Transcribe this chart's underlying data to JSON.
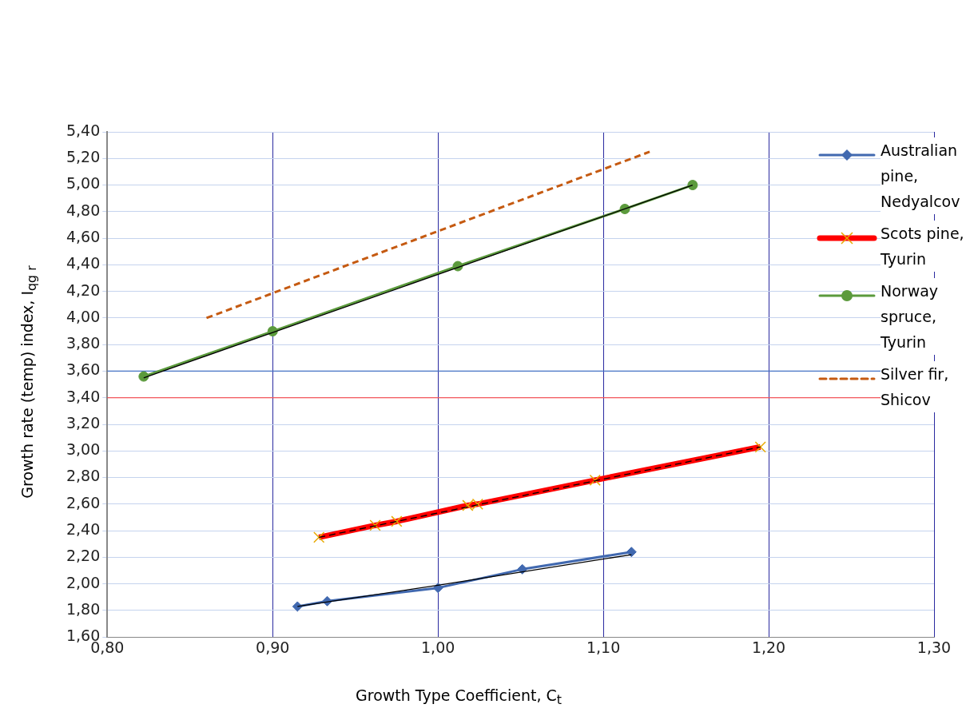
{
  "chart_data": {
    "type": "line",
    "xlabel": "Growth Type Coefficient, C$_{t}$",
    "ylabel": "Growth rate (temp) index, I$_{qg r}$",
    "xlim": [
      0.8,
      1.3
    ],
    "xticks": [
      {
        "value": 0.8,
        "label": "0,80"
      },
      {
        "value": 0.9,
        "label": "0,90"
      },
      {
        "value": 1.0,
        "label": "1,00"
      },
      {
        "value": 1.1,
        "label": "1,10"
      },
      {
        "value": 1.2,
        "label": "1,20"
      },
      {
        "value": 1.3,
        "label": "1,30"
      }
    ],
    "ylim": [
      1.6,
      5.4
    ],
    "yticks": [
      {
        "value": 1.6,
        "label": "1,60"
      },
      {
        "value": 1.8,
        "label": "1,80"
      },
      {
        "value": 2.0,
        "label": "2,00"
      },
      {
        "value": 2.2,
        "label": "2,20"
      },
      {
        "value": 2.4,
        "label": "2,40"
      },
      {
        "value": 2.6,
        "label": "2,60"
      },
      {
        "value": 2.8,
        "label": "2,80"
      },
      {
        "value": 3.0,
        "label": "3,00"
      },
      {
        "value": 3.2,
        "label": "3,20"
      },
      {
        "value": 3.4,
        "label": "3,40"
      },
      {
        "value": 3.6,
        "label": "3,60"
      },
      {
        "value": 3.8,
        "label": "3,80"
      },
      {
        "value": 4.0,
        "label": "4,00"
      },
      {
        "value": 4.2,
        "label": "4,20"
      },
      {
        "value": 4.4,
        "label": "4,40"
      },
      {
        "value": 4.6,
        "label": "4,60"
      },
      {
        "value": 4.8,
        "label": "4,80"
      },
      {
        "value": 5.0,
        "label": "5,00"
      },
      {
        "value": 5.2,
        "label": "5,20"
      },
      {
        "value": 5.4,
        "label": "5,40"
      }
    ],
    "grid": true,
    "legend": "right",
    "ref_lines": [
      {
        "axis": "y",
        "value": 3.6,
        "color": "#4472c4"
      },
      {
        "axis": "y",
        "value": 3.4,
        "color": "#ff3333"
      }
    ],
    "series": [
      {
        "name": "Australian pine, Nedyalcov",
        "color": "#4169b0",
        "marker": "diamond",
        "x": [
          0.915,
          0.933,
          1.0,
          1.051,
          1.117
        ],
        "values": [
          1.83,
          1.87,
          1.97,
          2.11,
          2.24
        ]
      },
      {
        "name": "Scots pine, Tyurin",
        "color": "#ff0000",
        "marker": "cross",
        "x": [
          0.928,
          0.962,
          0.975,
          1.018,
          1.024,
          1.095,
          1.195
        ],
        "values": [
          2.35,
          2.44,
          2.47,
          2.59,
          2.6,
          2.78,
          3.03
        ]
      },
      {
        "name": "Norway spruce, Tyurin",
        "color": "#5b9a3c",
        "marker": "circle",
        "x": [
          0.822,
          0.9,
          1.012,
          1.113,
          1.154
        ],
        "values": [
          3.56,
          3.9,
          4.39,
          4.82,
          5.0
        ]
      },
      {
        "name": "Silver fir, Shicov",
        "color": "#c55a11",
        "marker": "none",
        "line_style": "dashed",
        "x": [
          0.86,
          1.128
        ],
        "values": [
          4.0,
          5.25
        ]
      },
      {
        "type": "line",
        "color": "#000000",
        "marker": "none",
        "x": [
          0.915,
          1.0,
          1.117
        ],
        "values": [
          1.83,
          1.99,
          2.22
        ]
      },
      {
        "type": "line",
        "color": "#000000",
        "marker": "none",
        "line_style": "dashed",
        "x": [
          0.928,
          1.195
        ],
        "values": [
          2.35,
          3.03
        ]
      },
      {
        "type": "line",
        "color": "#000000",
        "marker": "none",
        "x": [
          0.822,
          1.154
        ],
        "values": [
          3.55,
          5.0
        ]
      }
    ]
  }
}
